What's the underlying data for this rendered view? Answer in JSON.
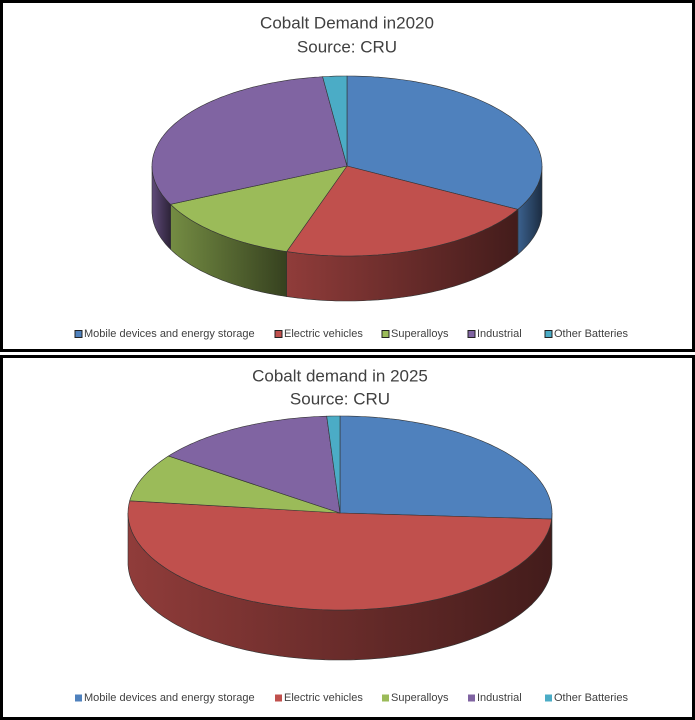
{
  "chart_data": [
    {
      "type": "pie3d",
      "title": "Cobalt Demand in2020",
      "subtitle": "Source: CRU",
      "categories": [
        "Mobile devices and energy storage",
        "Electric vehicles",
        "Superalloys",
        "Industrial",
        "Other Batteries"
      ],
      "values": [
        33,
        22,
        13,
        30,
        2
      ],
      "colors": [
        "#4f81bd",
        "#c0504d",
        "#9bbb59",
        "#8064a2",
        "#4bacc6"
      ]
    },
    {
      "type": "pie3d",
      "title": "Cobalt demand in 2025",
      "subtitle": "Source: CRU",
      "categories": [
        "Mobile devices and energy storage",
        "Electric vehicles",
        "Superalloys",
        "Industrial",
        "Other Batteries"
      ],
      "values": [
        26,
        51,
        8,
        14,
        1
      ],
      "colors": [
        "#4f81bd",
        "#c0504d",
        "#9bbb59",
        "#8064a2",
        "#4bacc6"
      ]
    }
  ]
}
